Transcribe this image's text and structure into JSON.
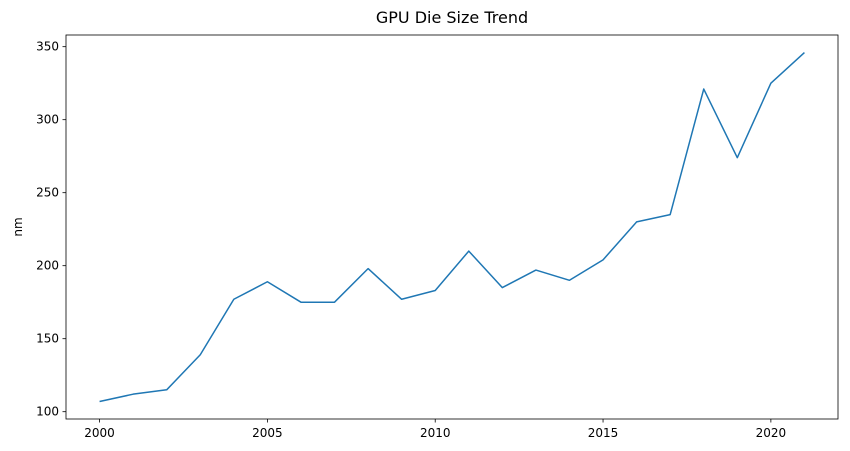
{
  "chart_data": {
    "type": "line",
    "title": "GPU Die Size Trend",
    "xlabel": "",
    "ylabel": "nm",
    "x": [
      2000,
      2001,
      2002,
      2003,
      2004,
      2005,
      2006,
      2007,
      2008,
      2009,
      2010,
      2011,
      2012,
      2013,
      2014,
      2015,
      2016,
      2017,
      2018,
      2019,
      2020,
      2021
    ],
    "series": [
      {
        "values": [
          107,
          112,
          115,
          139,
          177,
          189,
          175,
          175,
          198,
          177,
          183,
          210,
          185,
          197,
          190,
          204,
          230,
          235,
          321,
          274,
          325,
          346
        ],
        "color": "#1f77b4"
      }
    ],
    "xticks": [
      2000,
      2005,
      2010,
      2015,
      2020
    ],
    "yticks": [
      100,
      150,
      200,
      250,
      300,
      350
    ],
    "xlim": [
      1999,
      2022
    ],
    "ylim": [
      95,
      358
    ],
    "grid": false,
    "legend": "none"
  }
}
